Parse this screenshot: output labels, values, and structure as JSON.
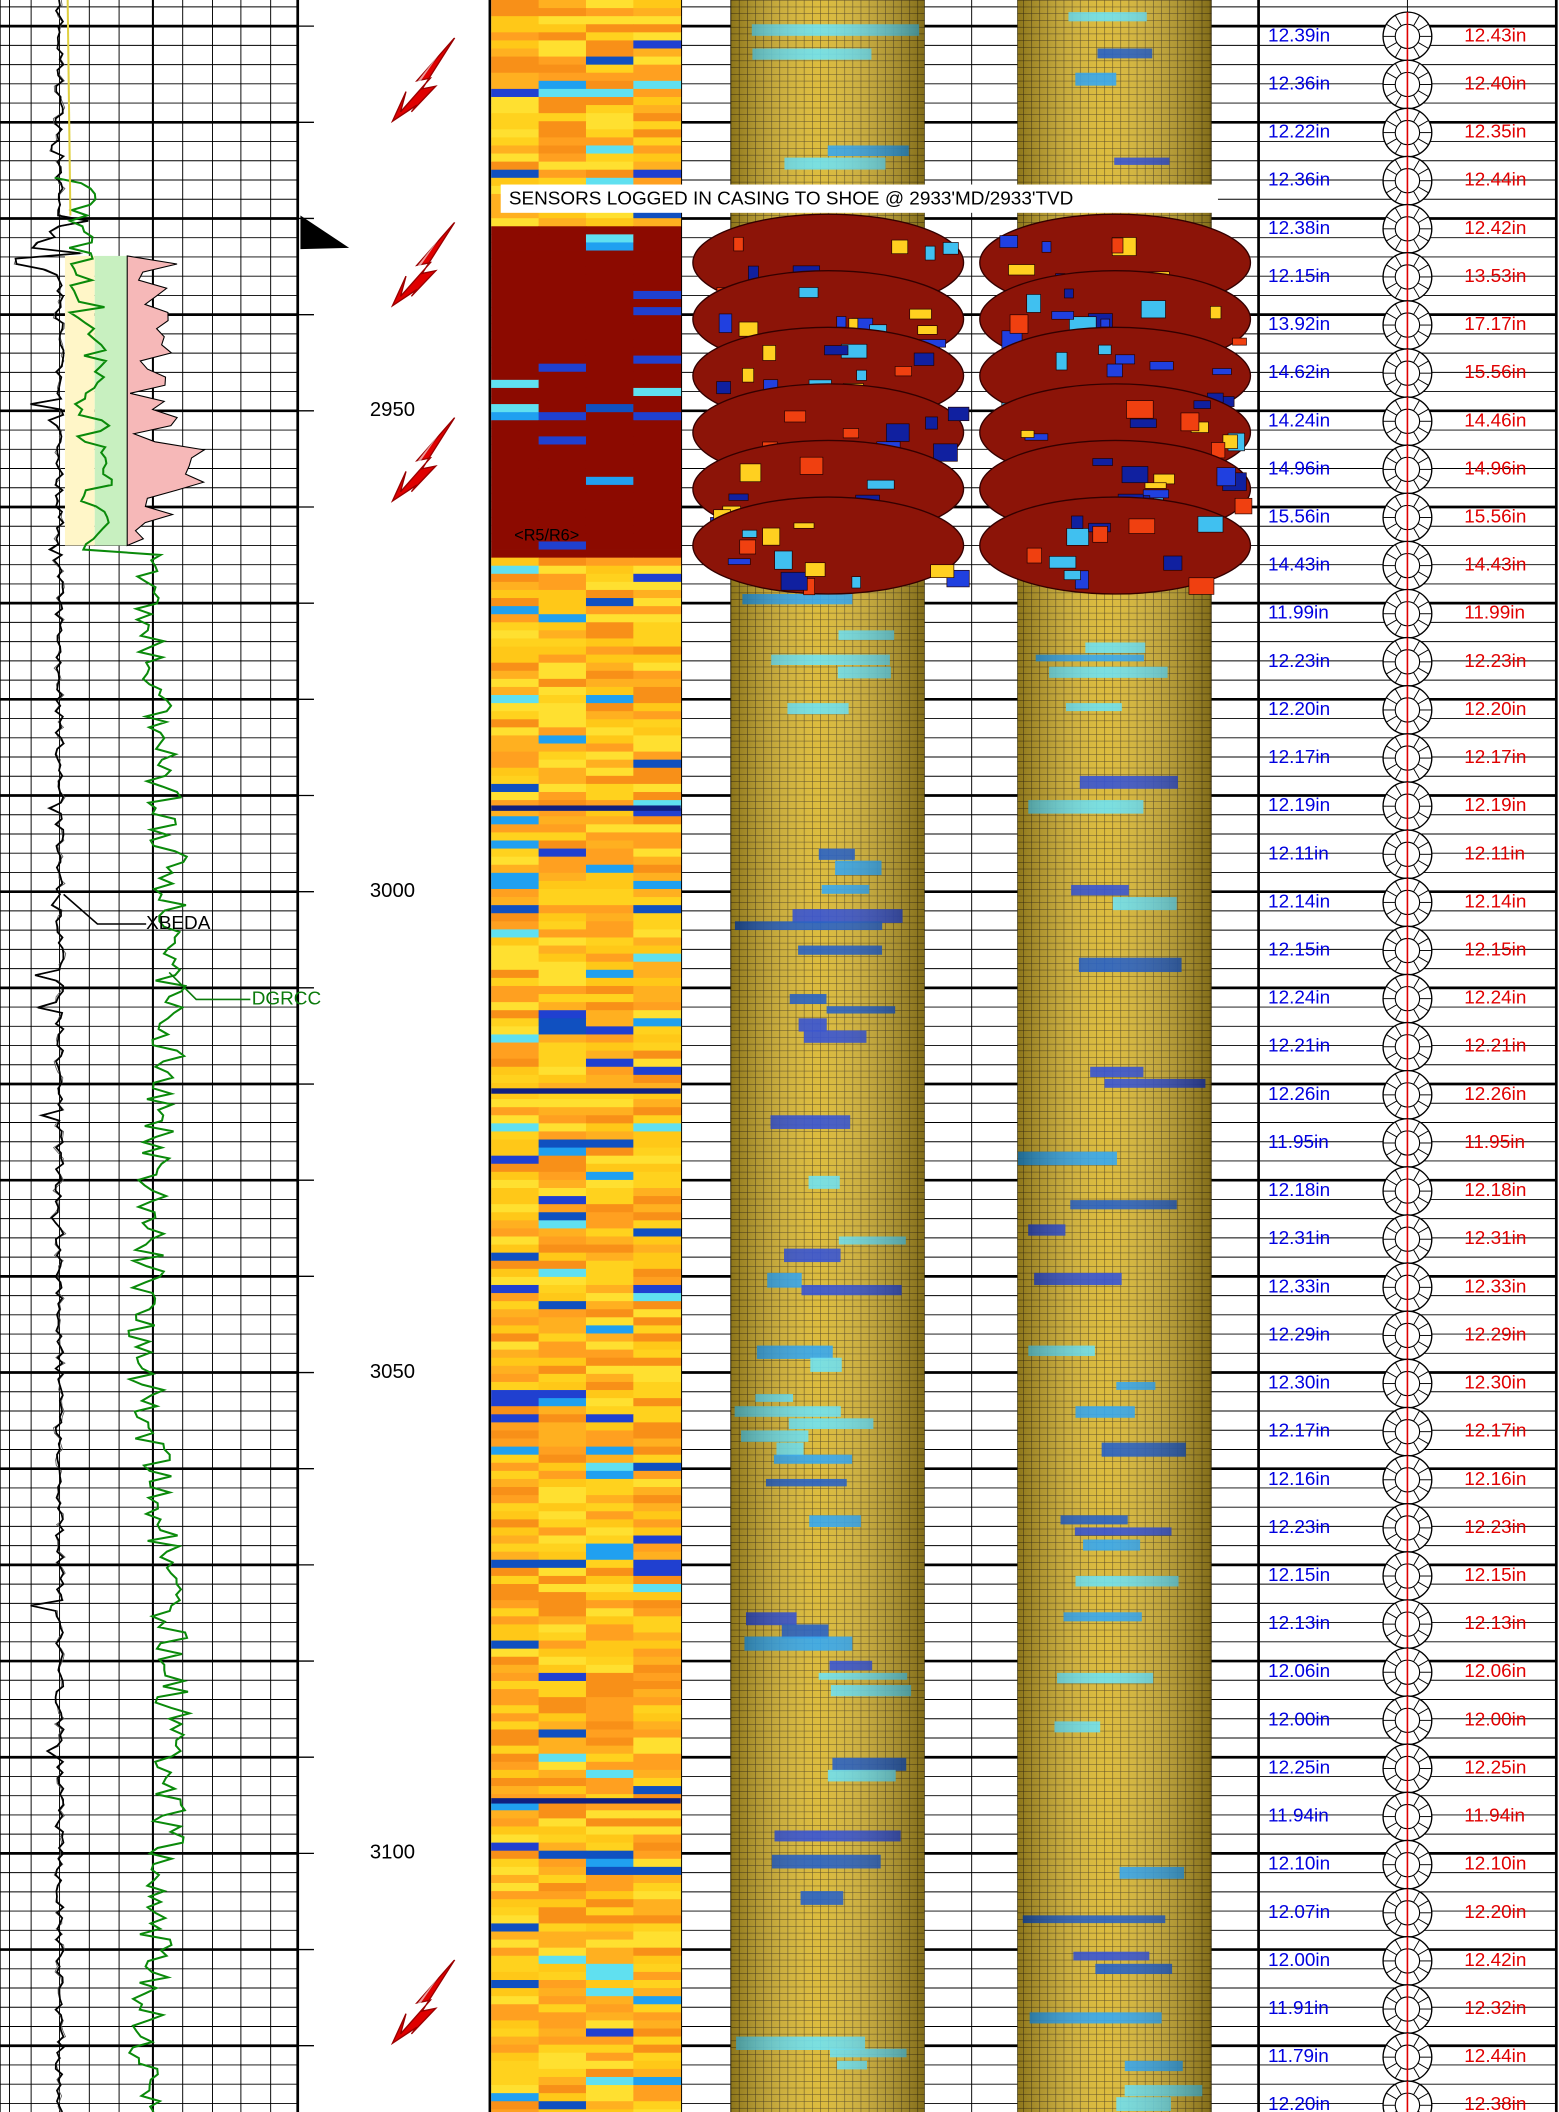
{
  "annotation": "SENSORS LOGGED IN CASING TO SHOE @ 2933'MD/2933'TVD",
  "image_label": "<R5/R6>",
  "curves": [
    "XBEDA",
    "DGRCC"
  ],
  "depths": [
    2950,
    3000,
    3050,
    3100
  ],
  "caliper": {
    "left": [
      "12.39in",
      "12.36in",
      "12.22in",
      "12.36in",
      "12.38in",
      "12.15in",
      "13.92in",
      "14.62in",
      "14.24in",
      "14.96in",
      "15.56in",
      "14.43in",
      "11.99in",
      "12.23in",
      "12.20in",
      "12.17in",
      "12.19in",
      "12.11in",
      "12.14in",
      "12.15in",
      "12.24in",
      "12.21in",
      "12.26in",
      "11.95in",
      "12.18in",
      "12.31in",
      "12.33in",
      "12.29in",
      "12.30in",
      "12.17in",
      "12.16in",
      "12.23in",
      "12.15in",
      "12.13in",
      "12.06in",
      "12.00in",
      "12.25in",
      "11.94in",
      "12.10in",
      "12.07in",
      "12.00in",
      "11.91in",
      "11.79in",
      "12.20in"
    ],
    "right": [
      "12.43in",
      "12.40in",
      "12.35in",
      "12.44in",
      "12.42in",
      "13.53in",
      "17.17in",
      "15.56in",
      "14.46in",
      "14.96in",
      "15.56in",
      "14.43in",
      "11.99in",
      "12.23in",
      "12.20in",
      "12.17in",
      "12.19in",
      "12.11in",
      "12.14in",
      "12.15in",
      "12.24in",
      "12.21in",
      "12.26in",
      "11.95in",
      "12.18in",
      "12.31in",
      "12.33in",
      "12.29in",
      "12.30in",
      "12.17in",
      "12.16in",
      "12.23in",
      "12.15in",
      "12.13in",
      "12.06in",
      "12.00in",
      "12.25in",
      "11.94in",
      "12.10in",
      "12.20in",
      "12.42in",
      "12.32in",
      "12.44in",
      "12.38in"
    ]
  }
}
